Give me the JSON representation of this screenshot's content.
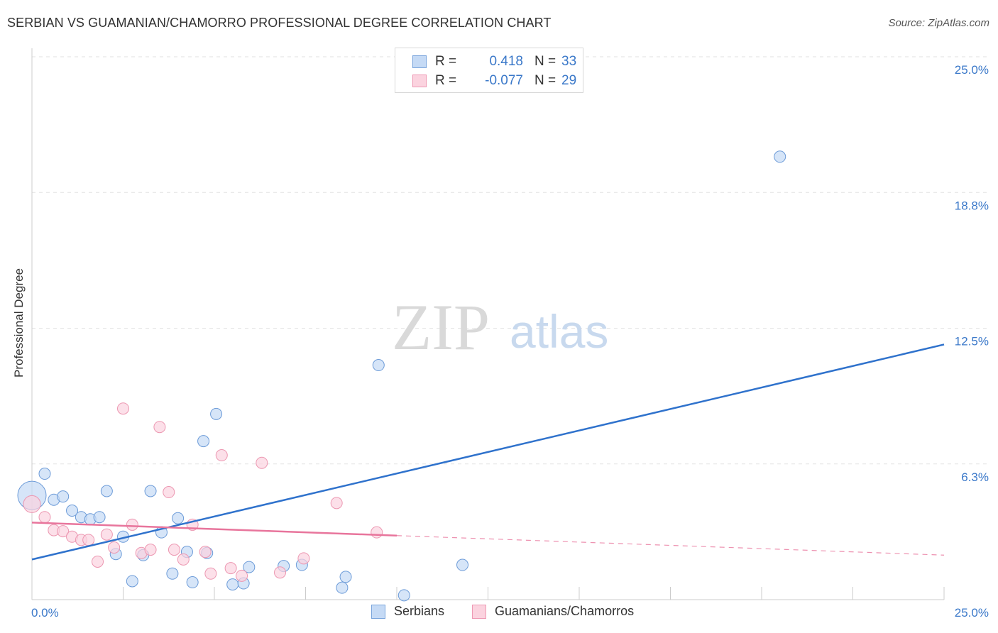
{
  "header": {
    "title": "SERBIAN VS GUAMANIAN/CHAMORRO PROFESSIONAL DEGREE CORRELATION CHART",
    "source": "Source: ZipAtlas.com"
  },
  "legend": {
    "rows": [
      {
        "r_label": "R =",
        "r_value": "0.418",
        "n_label": "N =",
        "n_value": "33",
        "color": "#a9c8ef"
      },
      {
        "r_label": "R =",
        "r_value": "-0.077",
        "n_label": "N =",
        "n_value": "29",
        "color": "#f6b8cb"
      }
    ]
  },
  "bottom_legend": {
    "serbians": "Serbians",
    "guamanians": "Guamanians/Chamorros"
  },
  "watermark": {
    "zip": "ZIP",
    "atlas": "atlas"
  },
  "colors": {
    "blue": "#3a78c9",
    "blue_line": "#2f72cc",
    "blue_fill": "#a9c8ef",
    "pink_fill": "#f6b8cb",
    "pink_line": "#e8759c",
    "grid": "#e2e2e2"
  },
  "chart_data": {
    "type": "scatter",
    "title": "SERBIAN VS GUAMANIAN/CHAMORRO PROFESSIONAL DEGREE CORRELATION CHART",
    "xlabel": "",
    "ylabel": "Professional Degree",
    "xlim": [
      0,
      25
    ],
    "ylim": [
      0,
      25
    ],
    "x_tick_labels": [
      "0.0%",
      "25.0%"
    ],
    "y_ticks": [
      {
        "value": 6.25,
        "label": "6.3%"
      },
      {
        "value": 12.5,
        "label": "12.5%"
      },
      {
        "value": 18.75,
        "label": "18.8%"
      },
      {
        "value": 25.0,
        "label": "25.0%"
      }
    ],
    "series": [
      {
        "name": "Serbians",
        "r": 0.418,
        "n": 33,
        "trend": {
          "x0": 0.0,
          "y0": 1.85,
          "x1": 25.0,
          "y1": 11.75
        },
        "points": [
          [
            0.0,
            4.8
          ],
          [
            0.35,
            5.8
          ],
          [
            0.6,
            4.6
          ],
          [
            0.85,
            4.75
          ],
          [
            1.1,
            4.1
          ],
          [
            1.35,
            3.8
          ],
          [
            1.6,
            3.7
          ],
          [
            1.85,
            3.8
          ],
          [
            2.05,
            5.0
          ],
          [
            2.3,
            2.1
          ],
          [
            2.5,
            2.9
          ],
          [
            2.75,
            0.85
          ],
          [
            3.05,
            2.05
          ],
          [
            3.25,
            5.0
          ],
          [
            3.55,
            3.1
          ],
          [
            3.85,
            1.2
          ],
          [
            4.0,
            3.75
          ],
          [
            4.25,
            2.2
          ],
          [
            4.4,
            0.8
          ],
          [
            4.8,
            2.15
          ],
          [
            5.05,
            8.55
          ],
          [
            4.7,
            7.3
          ],
          [
            5.5,
            0.7
          ],
          [
            5.8,
            0.75
          ],
          [
            5.95,
            1.5
          ],
          [
            6.9,
            1.55
          ],
          [
            7.4,
            1.6
          ],
          [
            8.5,
            0.55
          ],
          [
            8.6,
            1.05
          ],
          [
            9.5,
            10.8
          ],
          [
            10.2,
            0.2
          ],
          [
            11.8,
            1.6
          ],
          [
            20.5,
            20.4
          ]
        ]
      },
      {
        "name": "Guamanians/Chamorros",
        "r": -0.077,
        "n": 29,
        "trend": {
          "x0": 0.0,
          "y0": 3.55,
          "x1": 10.0,
          "y1": 2.95,
          "dashed_to_x": 25.0,
          "dashed_to_y": 2.05
        },
        "points": [
          [
            0.0,
            4.4
          ],
          [
            0.35,
            3.8
          ],
          [
            0.6,
            3.2
          ],
          [
            0.85,
            3.15
          ],
          [
            1.1,
            2.9
          ],
          [
            1.35,
            2.75
          ],
          [
            1.55,
            2.75
          ],
          [
            1.8,
            1.75
          ],
          [
            2.05,
            3.0
          ],
          [
            2.25,
            2.4
          ],
          [
            2.5,
            8.8
          ],
          [
            2.75,
            3.45
          ],
          [
            3.0,
            2.15
          ],
          [
            3.25,
            2.3
          ],
          [
            3.5,
            7.95
          ],
          [
            3.75,
            4.95
          ],
          [
            3.9,
            2.3
          ],
          [
            4.15,
            1.85
          ],
          [
            4.4,
            3.45
          ],
          [
            4.75,
            2.2
          ],
          [
            4.9,
            1.2
          ],
          [
            5.2,
            6.65
          ],
          [
            5.45,
            1.45
          ],
          [
            5.75,
            1.1
          ],
          [
            6.3,
            6.3
          ],
          [
            6.8,
            1.25
          ],
          [
            7.45,
            1.9
          ],
          [
            8.35,
            4.45
          ],
          [
            9.45,
            3.1
          ]
        ]
      }
    ]
  }
}
